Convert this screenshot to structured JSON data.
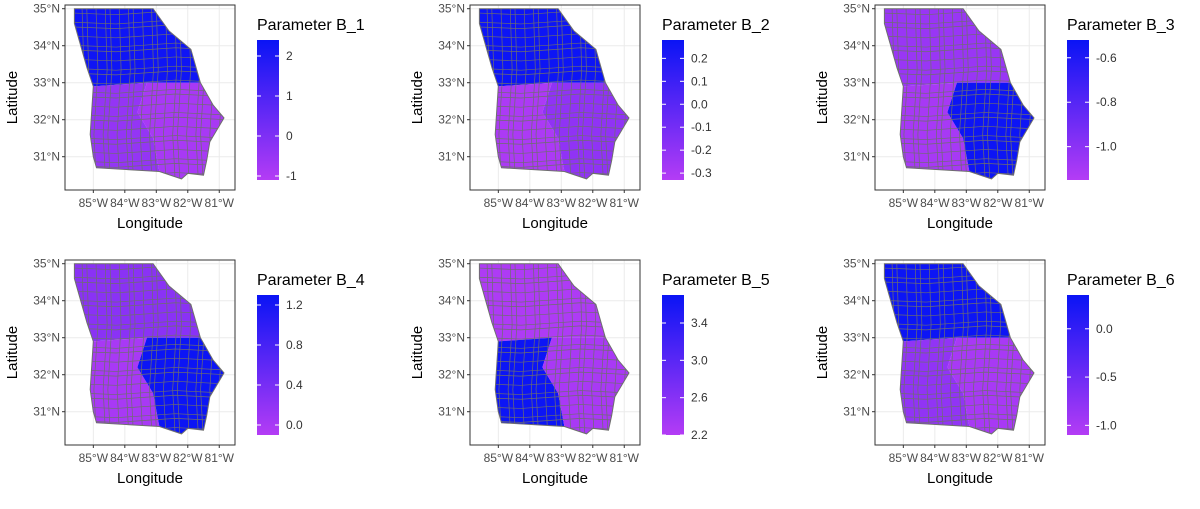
{
  "colors": {
    "low": "#b43cf5",
    "high": "#0a14f5",
    "county_border": "#6e6e6e",
    "frame": "#333333",
    "grid": "#ebebeb"
  },
  "shared": {
    "xlabel": "Longitude",
    "ylabel": "Latitude",
    "x_ticks": [
      "85°W",
      "84°W",
      "83°W",
      "82°W",
      "81°W"
    ],
    "y_ticks": [
      "31°N",
      "32°N",
      "33°N",
      "34°N",
      "35°N"
    ]
  },
  "chart_data": [
    {
      "type": "heatmap",
      "title": "Parameter B_1",
      "xlabel": "Longitude",
      "ylabel": "Latitude",
      "legend": {
        "title": "Parameter B_1",
        "range": [
          -1.1,
          2.4
        ],
        "ticks": [
          2,
          1,
          0,
          -1
        ],
        "tick_labels": [
          "2",
          "1",
          "0",
          "-1"
        ]
      },
      "regions": {
        "north": 2.3,
        "southwest": -0.45,
        "southeast": -0.85
      }
    },
    {
      "type": "heatmap",
      "title": "Parameter B_2",
      "xlabel": "Longitude",
      "ylabel": "Latitude",
      "legend": {
        "title": "Parameter B_2",
        "range": [
          -0.33,
          0.28
        ],
        "ticks": [
          0.2,
          0.1,
          0.0,
          -0.1,
          -0.2,
          -0.3
        ],
        "tick_labels": [
          "0.2",
          "0.1",
          "0.0",
          "-0.1",
          "-0.2",
          "-0.3"
        ]
      },
      "regions": {
        "north": 0.27,
        "southwest": -0.3,
        "southeast": -0.2
      }
    },
    {
      "type": "heatmap",
      "title": "Parameter B_3",
      "xlabel": "Longitude",
      "ylabel": "Latitude",
      "legend": {
        "title": "Parameter B_3",
        "range": [
          -1.15,
          -0.52
        ],
        "ticks": [
          -0.6,
          -0.8,
          -1.0
        ],
        "tick_labels": [
          "-0.6",
          "-0.8",
          "-1.0"
        ]
      },
      "regions": {
        "north": -1.05,
        "southwest": -1.1,
        "southeast": -0.53
      }
    },
    {
      "type": "heatmap",
      "title": "Parameter B_4",
      "xlabel": "Longitude",
      "ylabel": "Latitude",
      "legend": {
        "title": "Parameter B_4",
        "range": [
          -0.1,
          1.3
        ],
        "ticks": [
          1.2,
          0.8,
          0.4,
          0.0
        ],
        "tick_labels": [
          "1.2",
          "0.8",
          "0.4",
          "0.0"
        ]
      },
      "regions": {
        "north": 0.25,
        "southwest": 0.0,
        "southeast": 1.28
      }
    },
    {
      "type": "heatmap",
      "title": "Parameter B_5",
      "xlabel": "Longitude",
      "ylabel": "Latitude",
      "legend": {
        "title": "Parameter B_5",
        "range": [
          2.2,
          3.7
        ],
        "ticks": [
          3.4,
          3.0,
          2.6,
          2.2
        ],
        "tick_labels": [
          "3.4",
          "3.0",
          "2.6",
          "2.2"
        ]
      },
      "regions": {
        "north": 2.25,
        "southwest": 3.68,
        "southeast": 2.3
      }
    },
    {
      "type": "heatmap",
      "title": "Parameter B_6",
      "xlabel": "Longitude",
      "ylabel": "Latitude",
      "legend": {
        "title": "Parameter B_6",
        "range": [
          -1.1,
          0.35
        ],
        "ticks": [
          0.0,
          -0.5,
          -1.0
        ],
        "tick_labels": [
          "0.0",
          "-0.5",
          "-1.0"
        ]
      },
      "regions": {
        "north": 0.33,
        "southwest": -0.8,
        "southeast": -1.0
      }
    }
  ]
}
